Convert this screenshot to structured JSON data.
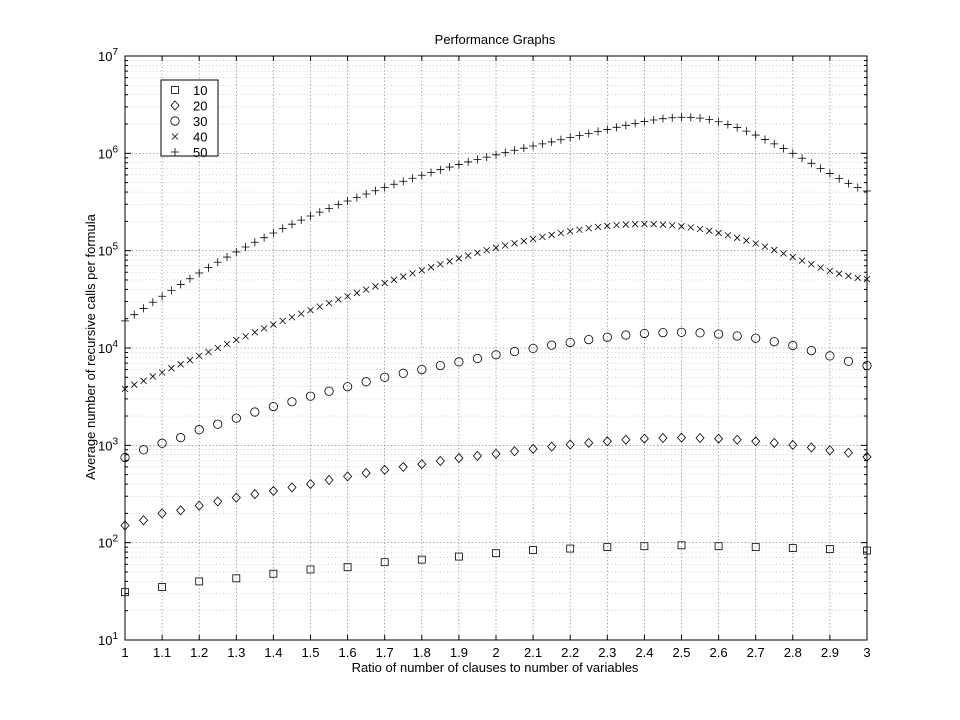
{
  "chart_data": {
    "type": "scatter",
    "title": "Performance Graphs",
    "xlabel": "Ratio of number of clauses to  number of variables",
    "ylabel": "Average number of  recursive calls per formula",
    "xlim": [
      1,
      3
    ],
    "ylim": [
      10,
      10000000
    ],
    "yscale": "log",
    "grid": true,
    "legend_position": "top-left",
    "x_ticks": [
      "1",
      "1.1",
      "1.2",
      "1.3",
      "1.4",
      "1.5",
      "1.6",
      "1.7",
      "1.8",
      "1.9",
      "2",
      "2.1",
      "2.2",
      "2.3",
      "2.4",
      "2.5",
      "2.6",
      "2.7",
      "2.8",
      "2.9",
      "3"
    ],
    "y_ticks": [
      {
        "base": "10",
        "exp": "1"
      },
      {
        "base": "10",
        "exp": "2"
      },
      {
        "base": "10",
        "exp": "3"
      },
      {
        "base": "10",
        "exp": "4"
      },
      {
        "base": "10",
        "exp": "5"
      },
      {
        "base": "10",
        "exp": "6"
      },
      {
        "base": "10",
        "exp": "7"
      }
    ],
    "series": [
      {
        "name": "10",
        "marker": "square",
        "x": [
          1.0,
          1.1,
          1.2,
          1.3,
          1.4,
          1.5,
          1.6,
          1.7,
          1.8,
          1.9,
          2.0,
          2.1,
          2.2,
          2.3,
          2.4,
          2.5,
          2.6,
          2.7,
          2.8,
          2.9,
          3.0
        ],
        "values": [
          31,
          35,
          40,
          43,
          48,
          53,
          56,
          63,
          67,
          72,
          78,
          84,
          87,
          90,
          92,
          94,
          92,
          90,
          88,
          86,
          83
        ]
      },
      {
        "name": "20",
        "marker": "diamond",
        "x": [
          1.0,
          1.05,
          1.1,
          1.15,
          1.2,
          1.25,
          1.3,
          1.35,
          1.4,
          1.45,
          1.5,
          1.55,
          1.6,
          1.65,
          1.7,
          1.75,
          1.8,
          1.85,
          1.9,
          1.95,
          2.0,
          2.05,
          2.1,
          2.15,
          2.2,
          2.25,
          2.3,
          2.35,
          2.4,
          2.45,
          2.5,
          2.55,
          2.6,
          2.65,
          2.7,
          2.75,
          2.8,
          2.85,
          2.9,
          2.95,
          3.0
        ],
        "values": [
          150,
          170,
          200,
          215,
          240,
          265,
          290,
          315,
          340,
          370,
          400,
          440,
          480,
          520,
          560,
          600,
          640,
          690,
          740,
          780,
          820,
          870,
          920,
          970,
          1020,
          1060,
          1100,
          1140,
          1170,
          1190,
          1200,
          1190,
          1170,
          1140,
          1100,
          1060,
          1010,
          950,
          890,
          840,
          760
        ]
      },
      {
        "name": "30",
        "marker": "circle",
        "x": [
          1.0,
          1.05,
          1.1,
          1.15,
          1.2,
          1.25,
          1.3,
          1.35,
          1.4,
          1.45,
          1.5,
          1.55,
          1.6,
          1.65,
          1.7,
          1.75,
          1.8,
          1.85,
          1.9,
          1.95,
          2.0,
          2.05,
          2.1,
          2.15,
          2.2,
          2.25,
          2.3,
          2.35,
          2.4,
          2.45,
          2.5,
          2.55,
          2.6,
          2.65,
          2.7,
          2.75,
          2.8,
          2.85,
          2.9,
          2.95,
          3.0
        ],
        "values": [
          750,
          900,
          1050,
          1200,
          1450,
          1650,
          1900,
          2200,
          2500,
          2800,
          3200,
          3600,
          4000,
          4500,
          5000,
          5500,
          6000,
          6600,
          7200,
          7800,
          8500,
          9200,
          9900,
          10700,
          11400,
          12200,
          12900,
          13600,
          14100,
          14400,
          14500,
          14300,
          13900,
          13300,
          12600,
          11600,
          10600,
          9400,
          8300,
          7300,
          6600
        ]
      },
      {
        "name": "40",
        "marker": "x",
        "x": [
          1.0,
          1.025,
          1.05,
          1.075,
          1.1,
          1.125,
          1.15,
          1.175,
          1.2,
          1.225,
          1.25,
          1.275,
          1.3,
          1.325,
          1.35,
          1.375,
          1.4,
          1.425,
          1.45,
          1.475,
          1.5,
          1.525,
          1.55,
          1.575,
          1.6,
          1.625,
          1.65,
          1.675,
          1.7,
          1.725,
          1.75,
          1.775,
          1.8,
          1.825,
          1.85,
          1.875,
          1.9,
          1.925,
          1.95,
          1.975,
          2.0,
          2.025,
          2.05,
          2.075,
          2.1,
          2.125,
          2.15,
          2.175,
          2.2,
          2.225,
          2.25,
          2.275,
          2.3,
          2.325,
          2.35,
          2.375,
          2.4,
          2.425,
          2.45,
          2.475,
          2.5,
          2.525,
          2.55,
          2.575,
          2.6,
          2.625,
          2.65,
          2.675,
          2.7,
          2.725,
          2.75,
          2.775,
          2.8,
          2.825,
          2.85,
          2.875,
          2.9,
          2.925,
          2.95,
          2.975,
          3.0
        ],
        "values": [
          3800,
          4200,
          4600,
          5100,
          5600,
          6200,
          6800,
          7500,
          8300,
          9100,
          10000,
          11000,
          12100,
          13200,
          14500,
          15900,
          17400,
          19000,
          20700,
          22500,
          24500,
          26600,
          28900,
          31400,
          34000,
          36800,
          39800,
          43000,
          46500,
          50200,
          54200,
          58400,
          62800,
          67500,
          72500,
          77700,
          83200,
          89000,
          95000,
          101000,
          107000,
          113000,
          119000,
          125500,
          132000,
          138500,
          145000,
          151500,
          158000,
          164000,
          170000,
          175000,
          179500,
          183000,
          185500,
          187000,
          187500,
          187000,
          185000,
          182000,
          178000,
          173000,
          167000,
          160000,
          152000,
          144000,
          135500,
          127000,
          118500,
          110000,
          101500,
          93500,
          86000,
          79000,
          72500,
          67000,
          62000,
          58000,
          55000,
          52500,
          51000
        ]
      },
      {
        "name": "50",
        "marker": "plus",
        "x": [
          1.0,
          1.025,
          1.05,
          1.075,
          1.1,
          1.125,
          1.15,
          1.175,
          1.2,
          1.225,
          1.25,
          1.275,
          1.3,
          1.325,
          1.35,
          1.375,
          1.4,
          1.425,
          1.45,
          1.475,
          1.5,
          1.525,
          1.55,
          1.575,
          1.6,
          1.625,
          1.65,
          1.675,
          1.7,
          1.725,
          1.75,
          1.775,
          1.8,
          1.825,
          1.85,
          1.875,
          1.9,
          1.925,
          1.95,
          1.975,
          2.0,
          2.025,
          2.05,
          2.075,
          2.1,
          2.125,
          2.15,
          2.175,
          2.2,
          2.225,
          2.25,
          2.275,
          2.3,
          2.325,
          2.35,
          2.375,
          2.4,
          2.425,
          2.45,
          2.475,
          2.5,
          2.525,
          2.55,
          2.575,
          2.6,
          2.625,
          2.65,
          2.675,
          2.7,
          2.725,
          2.75,
          2.775,
          2.8,
          2.825,
          2.85,
          2.875,
          2.9,
          2.925,
          2.95,
          2.975,
          3.0
        ],
        "values": [
          19000,
          22000,
          25500,
          29500,
          34000,
          39000,
          45000,
          51500,
          59000,
          67000,
          76000,
          86000,
          97000,
          109000,
          122000,
          136000,
          152000,
          169000,
          187000,
          206000,
          227000,
          249000,
          272000,
          297000,
          324000,
          352000,
          382000,
          413000,
          446000,
          481000,
          517000,
          555000,
          595000,
          636000,
          679000,
          723000,
          769000,
          816000,
          864000,
          914000,
          966000,
          1020000,
          1075000,
          1130000,
          1190000,
          1250000,
          1310000,
          1380000,
          1450000,
          1520000,
          1600000,
          1680000,
          1760000,
          1850000,
          1940000,
          2030000,
          2120000,
          2200000,
          2270000,
          2320000,
          2350000,
          2340000,
          2300000,
          2220000,
          2110000,
          1980000,
          1840000,
          1690000,
          1540000,
          1390000,
          1250000,
          1120000,
          1000000,
          890000,
          790000,
          700000,
          620000,
          550000,
          490000,
          445000,
          410000
        ]
      }
    ]
  }
}
